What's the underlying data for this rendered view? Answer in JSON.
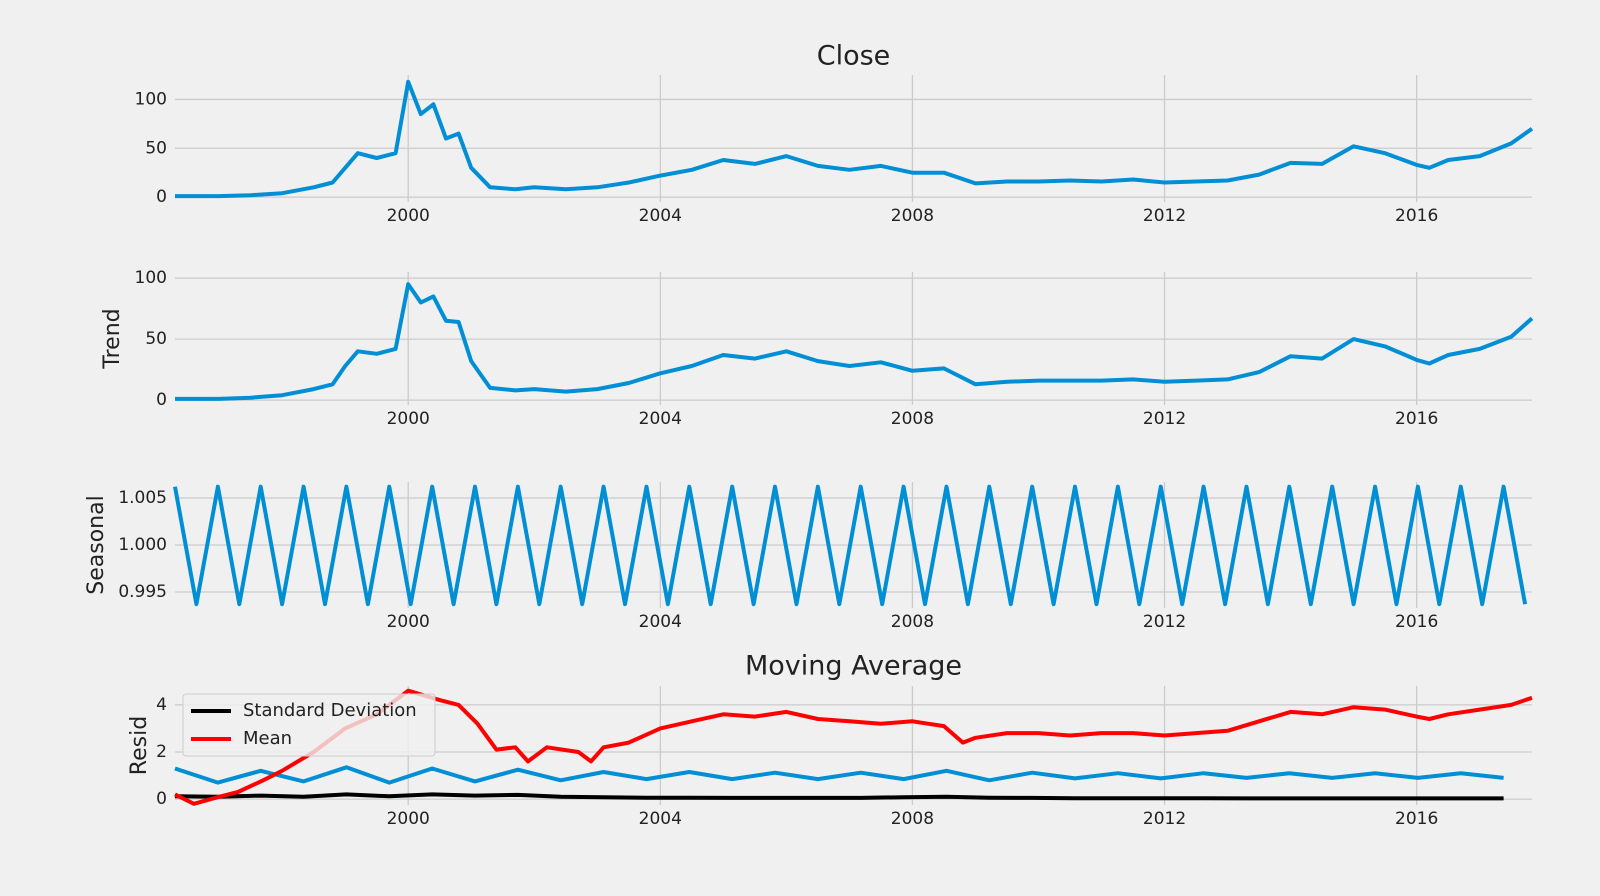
{
  "chart_data": [
    {
      "type": "line",
      "title": "Close",
      "xlim": [
        1996.3,
        2017.83
      ],
      "xticks": [
        2000,
        2004,
        2008,
        2012,
        2016
      ],
      "ylim": [
        -5,
        125
      ],
      "yticks": [
        0,
        50,
        100
      ],
      "grid": true,
      "x": [
        1996.3,
        1997,
        1997.5,
        1998,
        1998.5,
        1998.8,
        1999,
        1999.2,
        1999.5,
        1999.8,
        2000,
        2000.2,
        2000.4,
        2000.6,
        2000.8,
        2001,
        2001.3,
        2001.7,
        2002,
        2002.5,
        2003,
        2003.5,
        2004,
        2004.5,
        2005,
        2005.5,
        2006,
        2006.5,
        2007,
        2007.5,
        2008,
        2008.5,
        2009,
        2009.5,
        2010,
        2010.5,
        2011,
        2011.5,
        2012,
        2012.5,
        2013,
        2013.5,
        2014,
        2014.5,
        2015,
        2015.5,
        2016,
        2016.2,
        2016.5,
        2017,
        2017.5,
        2017.83
      ],
      "series": [
        {
          "color": "#008fd5",
          "values": [
            1,
            1,
            2,
            4,
            10,
            15,
            30,
            45,
            40,
            45,
            118,
            85,
            95,
            60,
            65,
            30,
            10,
            8,
            10,
            8,
            10,
            15,
            22,
            28,
            38,
            34,
            42,
            32,
            28,
            32,
            25,
            25,
            14,
            16,
            16,
            17,
            16,
            18,
            15,
            16,
            17,
            23,
            35,
            34,
            52,
            45,
            33,
            30,
            38,
            42,
            55,
            70
          ]
        }
      ]
    },
    {
      "type": "line",
      "ylabel": "Trend",
      "xlim": [
        1996.3,
        2017.83
      ],
      "xticks": [
        2000,
        2004,
        2008,
        2012,
        2016
      ],
      "ylim": [
        -4,
        105
      ],
      "yticks": [
        0,
        50,
        100
      ],
      "grid": true,
      "x": [
        1996.3,
        1997,
        1997.5,
        1998,
        1998.5,
        1998.8,
        1999,
        1999.2,
        1999.5,
        1999.8,
        2000,
        2000.2,
        2000.4,
        2000.6,
        2000.8,
        2001,
        2001.3,
        2001.7,
        2002,
        2002.5,
        2003,
        2003.5,
        2004,
        2004.5,
        2005,
        2005.5,
        2006,
        2006.5,
        2007,
        2007.5,
        2008,
        2008.5,
        2009,
        2009.5,
        2010,
        2010.5,
        2011,
        2011.5,
        2012,
        2012.5,
        2013,
        2013.5,
        2014,
        2014.5,
        2015,
        2015.5,
        2016,
        2016.2,
        2016.5,
        2017,
        2017.5,
        2017.83
      ],
      "series": [
        {
          "color": "#008fd5",
          "values": [
            1,
            1,
            2,
            4,
            9,
            13,
            28,
            40,
            38,
            42,
            95,
            80,
            85,
            65,
            64,
            32,
            10,
            8,
            9,
            7,
            9,
            14,
            22,
            28,
            37,
            34,
            40,
            32,
            28,
            31,
            24,
            26,
            13,
            15,
            16,
            16,
            16,
            17,
            15,
            16,
            17,
            23,
            36,
            34,
            50,
            44,
            33,
            30,
            37,
            42,
            52,
            67
          ]
        }
      ]
    },
    {
      "type": "line",
      "ylabel": "Seasonal",
      "xlim": [
        1996.3,
        2017.83
      ],
      "xticks": [
        2000,
        2004,
        2008,
        2012,
        2016
      ],
      "ylim": [
        0.9933,
        1.0067
      ],
      "yticks": [
        0.995,
        {
          "value": 1,
          "label": "1.000"
        },
        1.005
      ],
      "grid": true,
      "x": [
        1996.3,
        1996.64,
        1996.98,
        1997.32,
        1997.66,
        1998,
        1998.34,
        1998.68,
        1999.02,
        1999.36,
        1999.7,
        2000.04,
        2000.38,
        2000.72,
        2001.06,
        2001.4,
        2001.74,
        2002.08,
        2002.42,
        2002.76,
        2003.1,
        2003.44,
        2003.78,
        2004.12,
        2004.46,
        2004.8,
        2005.14,
        2005.48,
        2005.82,
        2006.16,
        2006.5,
        2006.84,
        2007.18,
        2007.52,
        2007.86,
        2008.2,
        2008.54,
        2008.88,
        2009.22,
        2009.56,
        2009.9,
        2010.24,
        2010.58,
        2010.92,
        2011.26,
        2011.6,
        2011.94,
        2012.28,
        2012.62,
        2012.96,
        2013.3,
        2013.64,
        2013.98,
        2014.32,
        2014.66,
        2015,
        2015.34,
        2015.68,
        2016.02,
        2016.36,
        2016.7,
        2017.04,
        2017.38,
        2017.72
      ],
      "series": [
        {
          "color": "#008fd5",
          "values": [
            1.0062,
            0.9937,
            1.0062,
            0.9937,
            1.0062,
            0.9937,
            1.0062,
            0.9937,
            1.0062,
            0.9937,
            1.0062,
            0.9937,
            1.0062,
            0.9937,
            1.0062,
            0.9937,
            1.0062,
            0.9937,
            1.0062,
            0.9937,
            1.0062,
            0.9937,
            1.0062,
            0.9937,
            1.0062,
            0.9937,
            1.0062,
            0.9937,
            1.0062,
            0.9937,
            1.0062,
            0.9937,
            1.0062,
            0.9937,
            1.0062,
            0.9937,
            1.0062,
            0.9937,
            1.0062,
            0.9937,
            1.0062,
            0.9937,
            1.0062,
            0.9937,
            1.0062,
            0.9937,
            1.0062,
            0.9937,
            1.0062,
            0.9937,
            1.0062,
            0.9937,
            1.0062,
            0.9937,
            1.0062,
            0.9937,
            1.0062,
            0.9937,
            1.0062,
            0.9937,
            1.0062,
            0.9937,
            1.0062,
            0.9937
          ]
        }
      ]
    },
    {
      "type": "line",
      "title": "Moving Average",
      "ylabel": "Resid",
      "xlim": [
        1996.3,
        2017.83
      ],
      "xticks": [
        2000,
        2004,
        2008,
        2012,
        2016
      ],
      "ylim": [
        -0.25,
        4.8
      ],
      "yticks": [
        0,
        2,
        4
      ],
      "grid": true,
      "legend": "upper left",
      "x": [
        1996.3,
        1996.98,
        1997.66,
        1998.34,
        1999.02,
        1999.7,
        2000.38,
        2001.06,
        2001.74,
        2002.42,
        2003.1,
        2003.78,
        2004.46,
        2005.14,
        2005.82,
        2006.5,
        2007.18,
        2007.86,
        2008.54,
        2009.22,
        2009.9,
        2010.58,
        2011.26,
        2011.94,
        2012.62,
        2013.3,
        2013.98,
        2014.66,
        2015.34,
        2016.02,
        2016.7,
        2017.38
      ],
      "series": [
        {
          "color": "#008fd5",
          "values": [
            1.3,
            0.7,
            1.2,
            0.75,
            1.35,
            0.7,
            1.3,
            0.75,
            1.25,
            0.8,
            1.15,
            0.85,
            1.15,
            0.85,
            1.12,
            0.85,
            1.12,
            0.85,
            1.2,
            0.8,
            1.12,
            0.88,
            1.1,
            0.88,
            1.1,
            0.9,
            1.1,
            0.9,
            1.1,
            0.9,
            1.1,
            0.9
          ]
        },
        {
          "name": "Standard Deviation",
          "color": "#000000",
          "values": [
            0.12,
            0.1,
            0.15,
            0.1,
            0.2,
            0.12,
            0.2,
            0.15,
            0.18,
            0.1,
            0.08,
            0.06,
            0.06,
            0.05,
            0.05,
            0.05,
            0.05,
            0.08,
            0.1,
            0.06,
            0.05,
            0.04,
            0.04,
            0.04,
            0.04,
            0.03,
            0.03,
            0.03,
            0.03,
            0.03,
            0.03,
            0.03
          ]
        },
        {
          "name": "Mean",
          "color": "#ff0000",
          "x": [
            1996.3,
            1996.6,
            1997,
            1997.3,
            1997.7,
            1998,
            1998.5,
            1999,
            1999.5,
            2000,
            2000.5,
            2000.8,
            2001.1,
            2001.4,
            2001.7,
            2001.9,
            2002.2,
            2002.7,
            2002.9,
            2003.1,
            2003.5,
            2004,
            2004.5,
            2005,
            2005.5,
            2006,
            2006.5,
            2007,
            2007.5,
            2008,
            2008.5,
            2008.8,
            2009,
            2009.5,
            2010,
            2010.5,
            2011,
            2011.5,
            2012,
            2012.5,
            2013,
            2013.5,
            2014,
            2014.5,
            2015,
            2015.5,
            2016,
            2016.2,
            2016.5,
            2017,
            2017.5,
            2017.83
          ],
          "values": [
            0.2,
            -0.2,
            0.1,
            0.3,
            0.8,
            1.2,
            2.0,
            3.0,
            3.6,
            4.6,
            4.2,
            4.0,
            3.2,
            2.1,
            2.2,
            1.6,
            2.2,
            2.0,
            1.6,
            2.2,
            2.4,
            3.0,
            3.3,
            3.6,
            3.5,
            3.7,
            3.4,
            3.3,
            3.2,
            3.3,
            3.1,
            2.4,
            2.6,
            2.8,
            2.8,
            2.7,
            2.8,
            2.8,
            2.7,
            2.8,
            2.9,
            3.3,
            3.7,
            3.6,
            3.9,
            3.8,
            3.5,
            3.4,
            3.6,
            3.8,
            4.0,
            4.3
          ]
        }
      ]
    }
  ]
}
